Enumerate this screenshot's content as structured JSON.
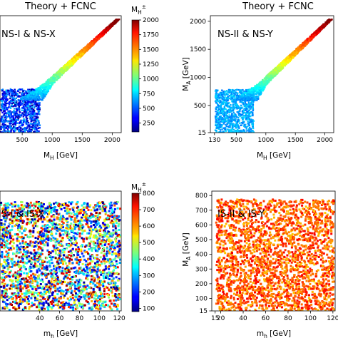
{
  "top_left_title": "Theory + FCNC",
  "top_right_title": "Theory + FCNC",
  "colorbars": [
    {
      "label": "M_H±",
      "label_main": "M",
      "label_sub": "H",
      "label_sup": "±",
      "min": 100,
      "max": 2000,
      "ticks": [
        "250",
        "500",
        "750",
        "1000",
        "1250",
        "1500",
        "1750",
        "2000"
      ]
    },
    {
      "label": "M_H±",
      "label_main": "M",
      "label_sub": "H",
      "label_sup": "±",
      "min": 80,
      "max": 800,
      "ticks": [
        "100",
        "200",
        "300",
        "400",
        "500",
        "600",
        "700",
        "800"
      ]
    }
  ],
  "colormap": "jet",
  "chart_data": [
    {
      "type": "scatter",
      "panel": "top-left",
      "title": "Theory + FCNC",
      "annotation": "NS-I & NS-X",
      "xlabel": "M_H [GeV]",
      "xlabel_main": "M",
      "xlabel_sub": "H",
      "xlabel_unit": " [GeV]",
      "xlim": [
        130,
        2150
      ],
      "ylim": [
        0,
        2100
      ],
      "xticks": [
        "500",
        "1000",
        "1500",
        "2000"
      ],
      "color_by": "M_H±",
      "regions": [
        {
          "description": "low mass block",
          "x": [
            130,
            780
          ],
          "y": [
            15,
            800
          ],
          "color_value": [
            150,
            700
          ]
        },
        {
          "description": "diagonal band",
          "x_center": [
            700,
            2050
          ],
          "y": [
            600,
            2050
          ],
          "color_value": "≈ y"
        }
      ]
    },
    {
      "type": "scatter",
      "panel": "top-right",
      "title": "Theory + FCNC",
      "annotation": "NS-II & NS-Y",
      "xlabel": "M_H [GeV]",
      "xlabel_main": "M",
      "xlabel_sub": "H",
      "xlabel_unit": " [GeV]",
      "ylabel": "M_A [GeV]",
      "ylabel_main": "M",
      "ylabel_sub": "A",
      "ylabel_unit": " [GeV]",
      "xlim": [
        60,
        2150
      ],
      "ylim": [
        15,
        2100
      ],
      "xticks": [
        "130",
        "500",
        "1000",
        "1500",
        "2000"
      ],
      "yticks": [
        "15",
        "500",
        "1000",
        "1500",
        "2000"
      ],
      "color_by": "M_H±",
      "regions": [
        {
          "description": "low mass block",
          "x": [
            130,
            780
          ],
          "y": [
            15,
            800
          ],
          "color_value": [
            550,
            750
          ]
        },
        {
          "description": "diagonal band",
          "x_center": [
            700,
            2050
          ],
          "y": [
            600,
            2050
          ],
          "color_value": "≈ y"
        }
      ]
    },
    {
      "type": "scatter",
      "panel": "bottom-left",
      "annotation": "IS-I & IS-X",
      "xlabel": "m_h [GeV]",
      "xlabel_main": "m",
      "xlabel_sub": "h",
      "xlabel_unit": " [GeV]",
      "xlim": [
        0,
        122
      ],
      "ylim": [
        0,
        850
      ],
      "xticks": [
        "40",
        "60",
        "80",
        "100",
        "120"
      ],
      "color_by": "M_H±",
      "regions": [
        {
          "description": "uniform fill",
          "x": [
            0,
            120
          ],
          "y": [
            15,
            780
          ],
          "color_value": [
            80,
            800
          ]
        }
      ]
    },
    {
      "type": "scatter",
      "panel": "bottom-right",
      "annotation": "IS-II & IS-Y",
      "xlabel": "m_h [GeV]",
      "xlabel_main": "m",
      "xlabel_sub": "h",
      "xlabel_unit": " [GeV]",
      "ylabel": "M_A [GeV]",
      "ylabel_main": "M",
      "ylabel_sub": "A",
      "ylabel_unit": " [GeV]",
      "xlim": [
        12,
        122
      ],
      "ylim": [
        15,
        830
      ],
      "xticks": [
        "15",
        "20",
        "40",
        "60",
        "80",
        "100",
        "120"
      ],
      "yticks": [
        "15",
        "100",
        "200",
        "300",
        "400",
        "500",
        "600",
        "700",
        "800"
      ],
      "color_by": "M_H±",
      "regions": [
        {
          "description": "uniform fill",
          "x": [
            15,
            120
          ],
          "y": [
            15,
            780
          ],
          "color_value": [
            570,
            720
          ]
        }
      ]
    }
  ]
}
